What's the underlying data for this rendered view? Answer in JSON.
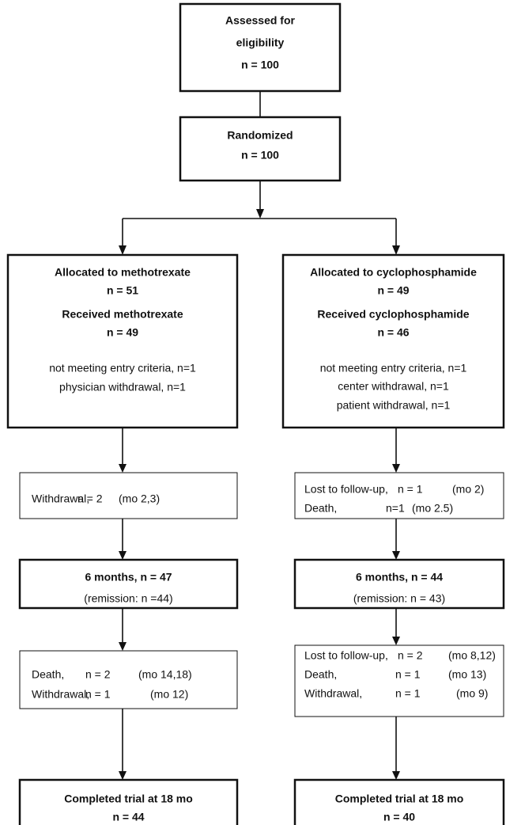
{
  "boxes": [
    {
      "lines": [
        "Assessed for",
        "eligibility",
        "n = 100"
      ]
    },
    {
      "lines": [
        "Randomized",
        "n = 100"
      ]
    },
    {
      "lines": [
        "Allocated to methotrexate",
        "n = 51",
        "Received methotrexate",
        "n = 49",
        "not meeting entry criteria, n=1",
        "physician withdrawal, n=1"
      ]
    },
    {
      "lines": [
        "Allocated to cyclophosphamide",
        "n = 49",
        "Received cyclophosphamide",
        "n = 46",
        "not meeting entry criteria, n=1",
        "center withdrawal, n=1",
        "patient withdrawal, n=1"
      ]
    },
    {
      "lines": [
        [
          "Withdrawal,",
          "n = 2",
          "(mo 2,3)"
        ]
      ]
    },
    {
      "lines": [
        [
          "Lost to follow-up,",
          "n = 1",
          "(mo 2)"
        ],
        [
          "Death,",
          "n=1",
          "(mo 2.5)"
        ]
      ]
    },
    {
      "lines": [
        "6 months, n = 47",
        "(remission: n =44)"
      ]
    },
    {
      "lines": [
        "6 months, n = 44",
        "(remission: n = 43)"
      ]
    },
    {
      "lines": [
        [
          "Death,",
          "n = 2",
          "(mo 14,18)"
        ],
        [
          "Withdrawal,",
          "n = 1",
          "(mo 12)"
        ]
      ]
    },
    {
      "lines": [
        [
          "Lost to follow-up,",
          "n = 2",
          "(mo 8,12)"
        ],
        [
          "Death,",
          "n = 1",
          "(mo 13)"
        ],
        [
          "Withdrawal,",
          "n = 1",
          "(mo 9)"
        ]
      ]
    },
    {
      "lines": [
        "Completed trial at 18 mo",
        "n = 44"
      ]
    },
    {
      "lines": [
        "Completed trial at 18 mo",
        "n = 40"
      ]
    }
  ]
}
